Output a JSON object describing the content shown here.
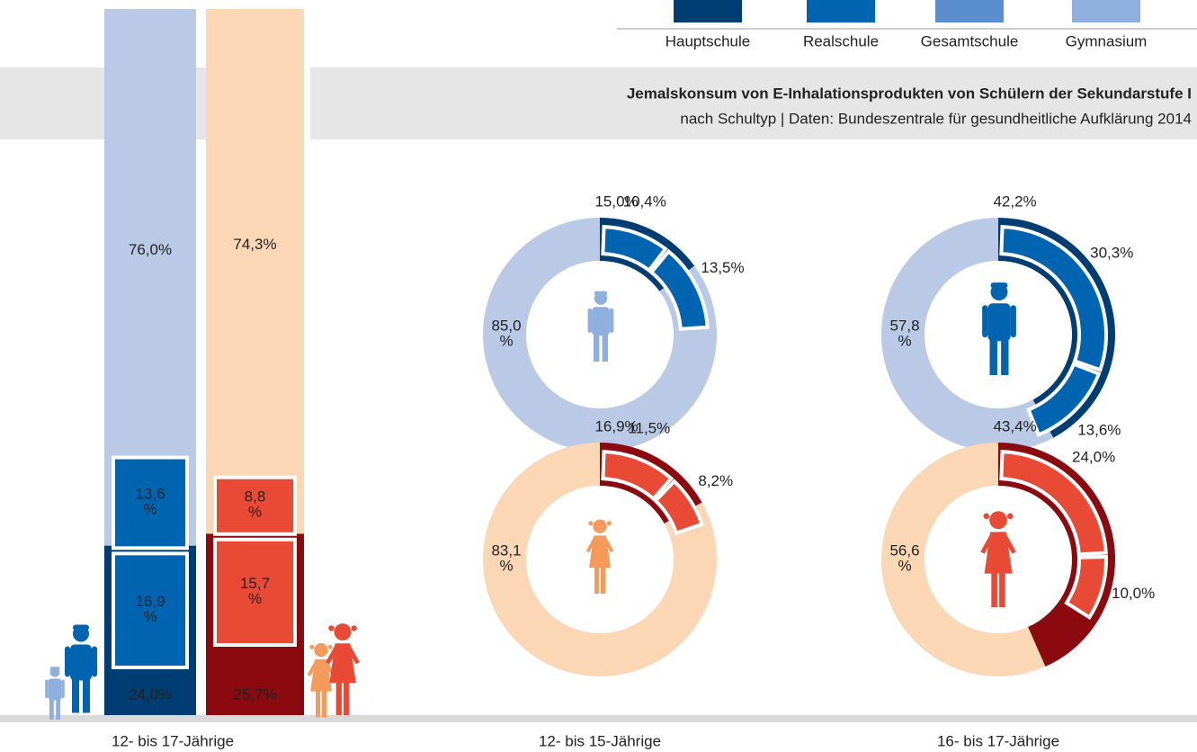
{
  "legend": {
    "items": [
      {
        "label": "Hauptschule",
        "color": "#003d73"
      },
      {
        "label": "Realschule",
        "color": "#0064b0"
      },
      {
        "label": "Gesamtschule",
        "color": "#5b8ecf"
      },
      {
        "label": "Gymnasium",
        "color": "#8fb0de"
      }
    ]
  },
  "header": {
    "title": "Jemalskonsum von E-Inhalationsprodukten von Schülern der Sekundarstufe I",
    "subtitle": "nach Schultyp | Daten: Bundeszentrale für gesundheitliche Aufklärung 2014"
  },
  "chart_data": [
    {
      "type": "stacked_bar",
      "xlabel": "12- bis 17-Jährige",
      "ylim": [
        0,
        100
      ],
      "bars": [
        {
          "values": [
            24.0,
            76.0
          ],
          "value_labels": [
            "24,0%",
            "76,0%"
          ],
          "colors": [
            "#003d73",
            "#b9c9e6"
          ],
          "inner_values": [
            16.9,
            13.6
          ],
          "inner_labels": [
            "16,9 %",
            "13,6 %"
          ],
          "inner_color": "#0064b0"
        },
        {
          "values": [
            25.7,
            74.3
          ],
          "value_labels": [
            "25,7%",
            "74,3%"
          ],
          "colors": [
            "#8b0a10",
            "#fcd7b6"
          ],
          "inner_values": [
            15.7,
            8.8
          ],
          "inner_labels": [
            "15,7 %",
            "8,8 %"
          ],
          "inner_color": "#e84a35"
        }
      ]
    },
    {
      "type": "donut",
      "xlabel": "12- bis 15-Jährige",
      "donuts": [
        {
          "values": [
            15.0,
            85.0
          ],
          "value_labels": [
            "15,0%",
            "85,0 %"
          ],
          "colors": [
            "#003d73",
            "#b9c9e6"
          ],
          "inner_values": [
            10.4,
            13.5
          ],
          "inner_labels": [
            "10,4%",
            "13,5%"
          ],
          "inner_color": "#0064b0"
        },
        {
          "values": [
            16.9,
            83.1
          ],
          "value_labels": [
            "16,9%",
            "83,1 %"
          ],
          "colors": [
            "#8b0a10",
            "#fcd7b6"
          ],
          "inner_values": [
            11.5,
            8.2
          ],
          "inner_labels": [
            "11,5%",
            "8,2%"
          ],
          "inner_color": "#e84a35"
        }
      ]
    },
    {
      "type": "donut",
      "xlabel": "16- bis 17-Jährige",
      "donuts": [
        {
          "values": [
            42.2,
            57.8
          ],
          "value_labels": [
            "42,2%",
            "57,8 %"
          ],
          "colors": [
            "#003d73",
            "#b9c9e6"
          ],
          "inner_values": [
            30.3,
            13.6
          ],
          "inner_labels": [
            "30,3%",
            "13,6%"
          ],
          "inner_color": "#0064b0"
        },
        {
          "values": [
            43.4,
            56.6
          ],
          "value_labels": [
            "43,4%",
            "56,6 %"
          ],
          "colors": [
            "#8b0a10",
            "#fcd7b6"
          ],
          "inner_values": [
            24.0,
            10.0
          ],
          "inner_labels": [
            "24,0%",
            "10,0%"
          ],
          "inner_color": "#e84a35"
        }
      ]
    }
  ]
}
